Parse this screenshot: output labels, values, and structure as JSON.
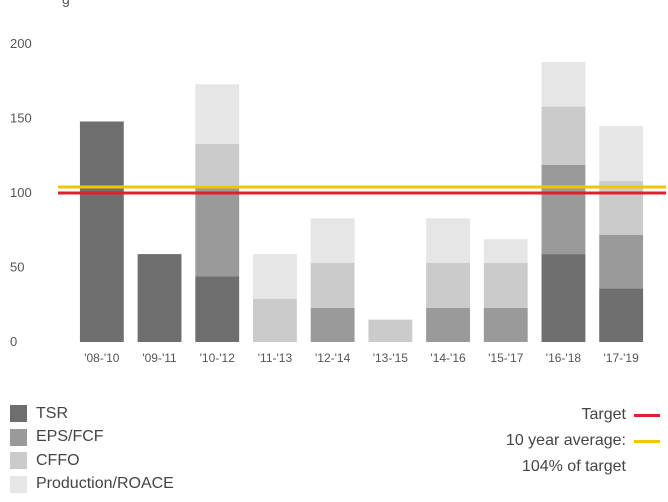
{
  "header": {
    "partial_text": "g"
  },
  "chart_data": {
    "type": "bar",
    "stacked": true,
    "categories": [
      "'08-'10",
      "'09-'11",
      "'10-'12",
      "'11-'13",
      "'12-'14",
      "'13-'15",
      "'14-'16",
      "'15-'17",
      "'16-'18",
      "'17-'19"
    ],
    "series": [
      {
        "name": "TSR",
        "color": "#6e6e6e",
        "values": [
          148,
          59,
          44,
          0,
          0,
          0,
          0,
          0,
          59,
          36
        ]
      },
      {
        "name": "EPS/FCF",
        "color": "#9a9a9a",
        "values": [
          0,
          0,
          60,
          0,
          23,
          0,
          23,
          23,
          60,
          36
        ]
      },
      {
        "name": "CFFO",
        "color": "#cbcbcb",
        "values": [
          0,
          0,
          29,
          29,
          30,
          15,
          30,
          30,
          39,
          36
        ]
      },
      {
        "name": "Production/ROACE",
        "color": "#e6e6e6",
        "values": [
          0,
          0,
          40,
          30,
          30,
          0,
          30,
          16,
          30,
          37
        ]
      }
    ],
    "reference_lines": [
      {
        "name": "Target",
        "value": 100,
        "color": "#e0202a"
      },
      {
        "name": "10 year average",
        "value": 104,
        "color": "#f5c400"
      }
    ],
    "ylim": [
      0,
      200
    ],
    "yticks": [
      0,
      50,
      100,
      150,
      200
    ],
    "grid": false,
    "legend": {
      "left": [
        "TSR",
        "EPS/FCF",
        "CFFO",
        "Production/ROACE"
      ],
      "right": [
        {
          "label": "Target",
          "color": "#e0202a"
        },
        {
          "label": "10 year average:",
          "color": "#f5c400"
        }
      ],
      "right_note": "104% of target"
    }
  }
}
